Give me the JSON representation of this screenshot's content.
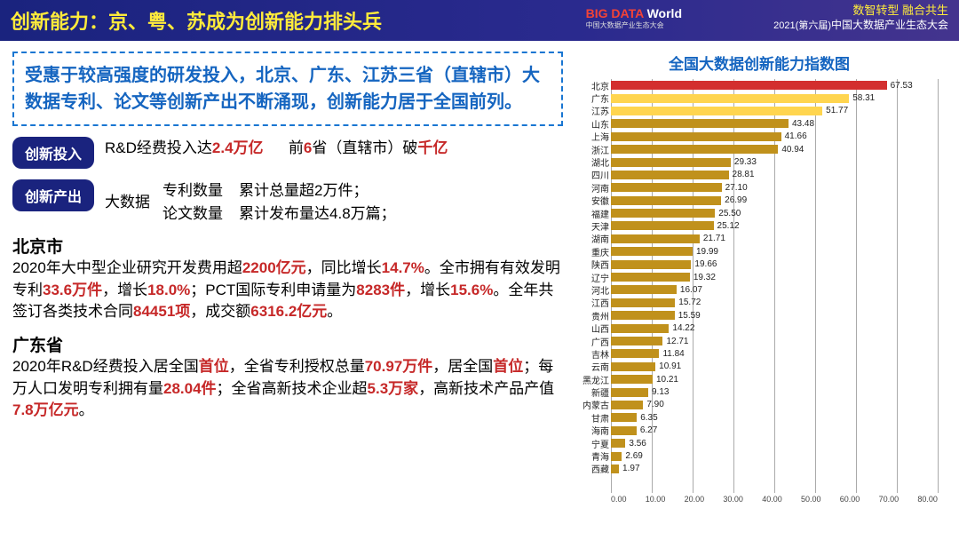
{
  "header": {
    "title": "创新能力：京、粤、苏成为创新能力排头兵",
    "logo_text": "BIG DATA World",
    "logo_sub": "中国大数据产业生态大会",
    "slogan": "数智转型 融合共生",
    "conf_prefix": "2021",
    "conf_mid": "(第六届)",
    "conf_suffix": "中国大数据产业生态大会"
  },
  "summary_box": "受惠于较高强度的研发投入，北京、广东、江苏三省（直辖市）大数据专利、论文等创新产出不断涌现，创新能力居于全国前列。",
  "badge1": {
    "label": "创新投入",
    "t1a": "R&D经费投入达",
    "t1b": "2.4万亿",
    "t2a": "前",
    "t2b": "6",
    "t2c": "省（直辖市）破",
    "t2d": "千亿"
  },
  "badge2": {
    "label": "创新产出",
    "prefix": "大数据",
    "c1a": "专利数量",
    "c1b": "论文数量",
    "c2a": "累计总量超2万件；",
    "c2b": "累计发布量达4.8万篇；"
  },
  "city1": {
    "name": "北京市",
    "p1": "2020年大中型企业研究开发费用超",
    "v1": "2200亿元",
    "p2": "，同比增长",
    "v2": "14.7%",
    "p3": "。全市拥有有效发明专利",
    "v3": "33.6万件",
    "p4": "，增长",
    "v4": "18.0%",
    "p5": "；PCT国际专利申请量为",
    "v5": "8283件",
    "p6": "，增长",
    "v6": "15.6%",
    "p7": "。全年共签订各类技术合同",
    "v7": "84451项",
    "p8": "，成交额",
    "v8": "6316.2亿元",
    "p9": "。"
  },
  "city2": {
    "name": "广东省",
    "p1": "2020年R&D经费投入居全国",
    "v1": "首位",
    "p2": "，全省专利授权总量",
    "v2": "70.97万件",
    "p3": "，居全国",
    "v3": "首位",
    "p4": "；每万人口发明专利拥有量",
    "v4": "28.04件",
    "p5": "；全省高新技术企业超",
    "v5": "5.3万家",
    "p6": "，高新技术产品产值",
    "v6": "7.8万亿元",
    "p7": "。"
  },
  "chart": {
    "title": "全国大数据创新能力指数图",
    "type": "bar",
    "xmax": 80,
    "xticks": [
      0,
      10,
      20,
      30,
      40,
      50,
      60,
      70,
      80
    ],
    "xtick_labels": [
      "0.00",
      "10.00",
      "20.00",
      "30.00",
      "40.00",
      "50.00",
      "60.00",
      "70.00",
      "80.00"
    ],
    "bar_default_color": "#c0911c",
    "special_colors": {
      "0": "#d32f2f",
      "1": "#ffd54f",
      "2": "#ffd54f"
    },
    "data": [
      {
        "l": "北京",
        "v": 67.53
      },
      {
        "l": "广东",
        "v": 58.31
      },
      {
        "l": "江苏",
        "v": 51.77
      },
      {
        "l": "山东",
        "v": 43.48
      },
      {
        "l": "上海",
        "v": 41.66
      },
      {
        "l": "浙江",
        "v": 40.94
      },
      {
        "l": "湖北",
        "v": 29.33
      },
      {
        "l": "四川",
        "v": 28.81
      },
      {
        "l": "河南",
        "v": 27.1
      },
      {
        "l": "安徽",
        "v": 26.99
      },
      {
        "l": "福建",
        "v": 25.5
      },
      {
        "l": "天津",
        "v": 25.12
      },
      {
        "l": "湖南",
        "v": 21.71
      },
      {
        "l": "重庆",
        "v": 19.99
      },
      {
        "l": "陕西",
        "v": 19.66
      },
      {
        "l": "辽宁",
        "v": 19.32
      },
      {
        "l": "河北",
        "v": 16.07
      },
      {
        "l": "江西",
        "v": 15.72
      },
      {
        "l": "贵州",
        "v": 15.59
      },
      {
        "l": "山西",
        "v": 14.22
      },
      {
        "l": "广西",
        "v": 12.71
      },
      {
        "l": "吉林",
        "v": 11.84
      },
      {
        "l": "云南",
        "v": 10.91
      },
      {
        "l": "黑龙江",
        "v": 10.21
      },
      {
        "l": "新疆",
        "v": 9.13
      },
      {
        "l": "内蒙古",
        "v": 7.9
      },
      {
        "l": "甘肃",
        "v": 6.35
      },
      {
        "l": "海南",
        "v": 6.27
      },
      {
        "l": "宁夏",
        "v": 3.56
      },
      {
        "l": "青海",
        "v": 2.69
      },
      {
        "l": "西藏",
        "v": 1.97
      }
    ]
  }
}
